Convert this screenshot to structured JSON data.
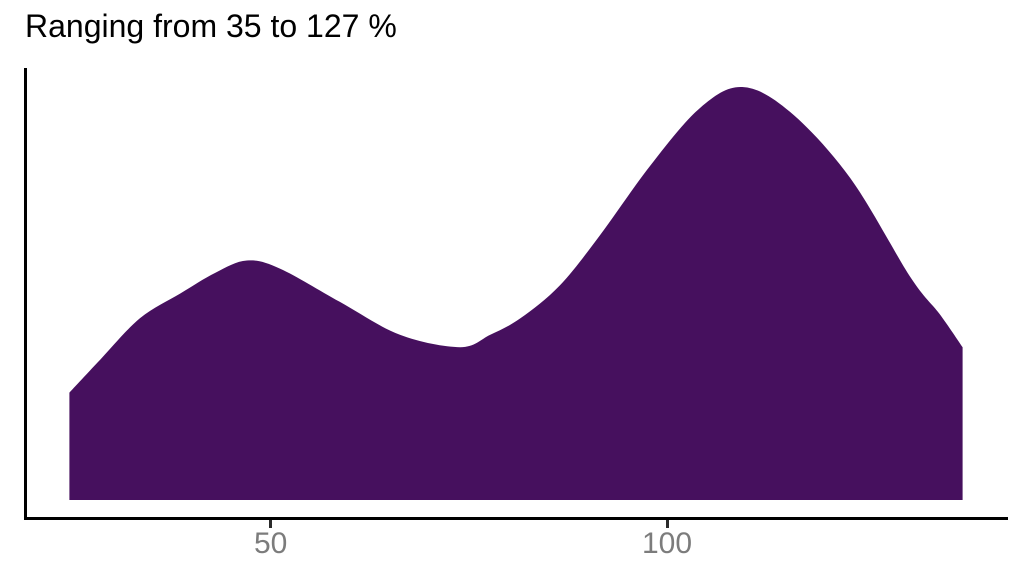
{
  "title": "Ranging from 35 to 127 %",
  "colors": {
    "background": "#ffffff",
    "area_fill": "#46105e",
    "axis_line": "#000000",
    "tick_mark": "#2b2b2b",
    "tick_label": "#7c7c7c",
    "title_text": "#000000"
  },
  "x_axis": {
    "tick_labels": [
      "50",
      "100"
    ]
  },
  "chart_data": {
    "type": "area",
    "subtype": "density",
    "title": "Ranging from 35 to 127 %",
    "xlabel": "",
    "ylabel": "",
    "unit": "%",
    "data_range": [
      35,
      127
    ],
    "x_ticks": [
      50,
      100
    ],
    "xlim": [
      19,
      143
    ],
    "ylim": [
      0,
      1.04
    ],
    "grid": false,
    "legend": "none",
    "y_scale": "relative density (peak = 1)",
    "x": [
      24.6,
      28.5,
      33.5,
      38.6,
      43.0,
      47.0,
      51.2,
      58.7,
      66.3,
      73.9,
      77.7,
      81.5,
      86.5,
      91.5,
      97.9,
      104.2,
      109.5,
      115.5,
      123.1,
      130.7,
      134.4,
      137.3
    ],
    "y": [
      0.26,
      0.34,
      0.44,
      0.5,
      0.55,
      0.58,
      0.56,
      0.48,
      0.4,
      0.37,
      0.4,
      0.44,
      0.52,
      0.64,
      0.81,
      0.95,
      1.0,
      0.94,
      0.78,
      0.54,
      0.45,
      0.37
    ]
  }
}
